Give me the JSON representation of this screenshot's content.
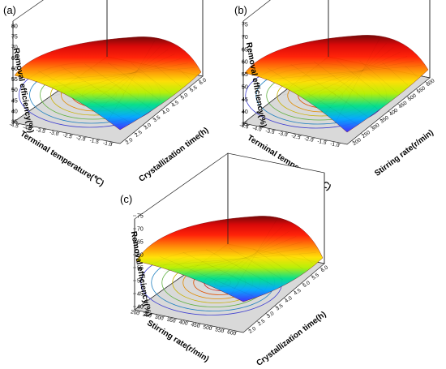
{
  "figure": {
    "panels": [
      {
        "letter": "(a)",
        "z_title": "Removal efficiency(%)",
        "z_ticks": [
          "80",
          "75",
          "70",
          "65",
          "60",
          "55",
          "50",
          "45",
          "40",
          "35"
        ],
        "x_title": "Terminal temperature(℃)",
        "x_ticks": [
          "-4.5",
          "-4.0",
          "-3.5",
          "-3.0",
          "-2.5",
          "-2.0",
          "-1.5",
          "-1.0"
        ],
        "y_title": "Crystallization time(h)",
        "y_ticks": [
          "2.0",
          "2.5",
          "3.0",
          "3.5",
          "4.0",
          "4.5",
          "5.0",
          "5.5",
          "6.0"
        ]
      },
      {
        "letter": "(b)",
        "z_title": "Removal efficiency(%)",
        "z_ticks": [
          "75",
          "70",
          "65",
          "60",
          "55",
          "50",
          "45",
          "40",
          "35"
        ],
        "x_title": "Terminal temperature(℃)",
        "x_ticks": [
          "-4.5",
          "-4.0",
          "-3.5",
          "-3.0",
          "-2.5",
          "-2.0",
          "-1.5",
          "-1.0"
        ],
        "y_title": "Stirring rate(r/min)",
        "y_ticks": [
          "200",
          "250",
          "300",
          "350",
          "400",
          "450",
          "500",
          "550",
          "600"
        ]
      },
      {
        "letter": "(c)",
        "z_title": "Removal efficiency(%)",
        "z_ticks": [
          "75",
          "70",
          "65",
          "60",
          "55",
          "50",
          "45",
          "40"
        ],
        "x_title": "Stirring rate(r/min)",
        "x_ticks": [
          "200",
          "250",
          "300",
          "350",
          "400",
          "450",
          "500",
          "550",
          "600"
        ],
        "y_title": "Crystallization time(h)",
        "y_ticks": [
          "2.0",
          "2.5",
          "3.0",
          "3.5",
          "4.0",
          "4.5",
          "5.0",
          "5.5",
          "6.0"
        ]
      }
    ]
  },
  "chart_data": [
    {
      "type": "surface",
      "panel": "(a)",
      "x": {
        "label": "Terminal temperature(℃)",
        "range": [
          -4.5,
          -1.0
        ]
      },
      "y": {
        "label": "Crystallization time(h)",
        "range": [
          2.0,
          6.0
        ]
      },
      "z": {
        "label": "Removal efficiency(%)",
        "range": [
          35,
          80
        ]
      },
      "surface_peak_z": 78,
      "surface_min_z": 39,
      "contour_projection": true
    },
    {
      "type": "surface",
      "panel": "(b)",
      "x": {
        "label": "Terminal temperature(℃)",
        "range": [
          -4.5,
          -1.0
        ]
      },
      "y": {
        "label": "Stirring rate(r/min)",
        "range": [
          200,
          600
        ]
      },
      "z": {
        "label": "Removal efficiency(%)",
        "range": [
          35,
          75
        ]
      },
      "surface_peak_z": 74,
      "surface_min_z": 40,
      "contour_projection": true
    },
    {
      "type": "surface",
      "panel": "(c)",
      "x": {
        "label": "Stirring rate(r/min)",
        "range": [
          200,
          600
        ]
      },
      "y": {
        "label": "Crystallization time(h)",
        "range": [
          2.0,
          6.0
        ]
      },
      "z": {
        "label": "Removal efficiency(%)",
        "range": [
          40,
          75
        ]
      },
      "surface_peak_z": 75,
      "surface_min_z": 45,
      "contour_projection": true
    }
  ]
}
